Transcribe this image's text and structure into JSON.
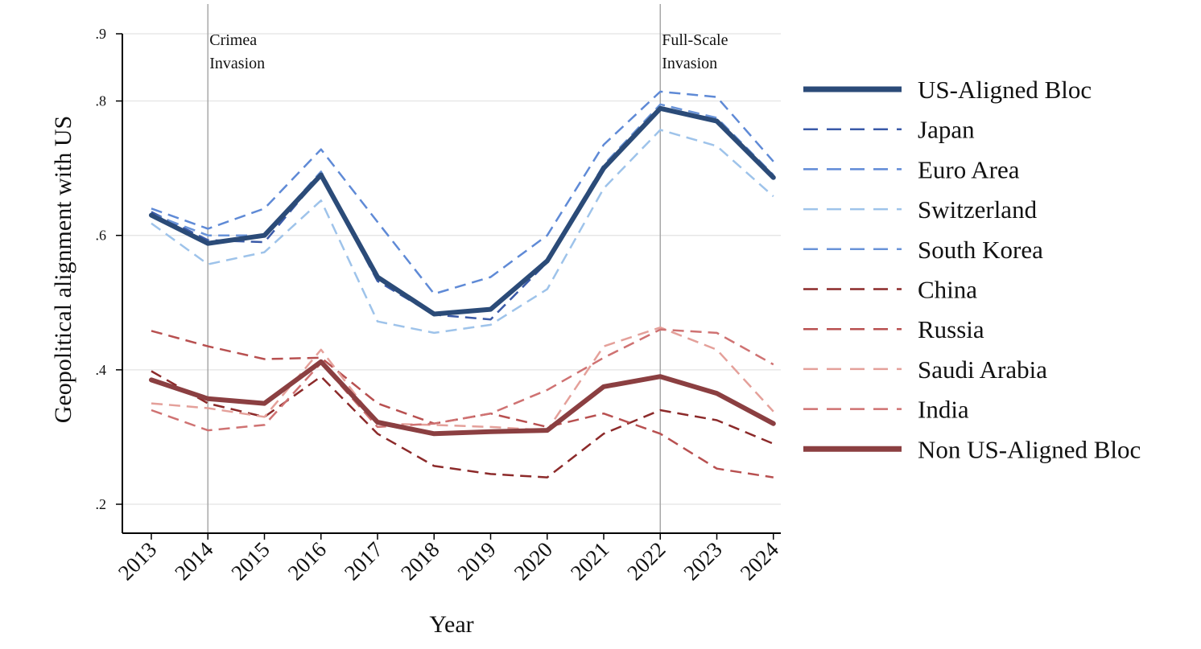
{
  "chart_data": {
    "type": "line",
    "title": "",
    "xlabel": "Year",
    "ylabel": "Geopolitical alignment with US",
    "x": [
      "2013",
      "2014",
      "2015",
      "2016",
      "2017",
      "2018",
      "2019",
      "2020",
      "2021",
      "2022",
      "2023",
      "2024"
    ],
    "ylim": [
      0.2,
      0.9
    ],
    "yticks": [
      0.2,
      0.4,
      0.6,
      0.8,
      0.9
    ],
    "ytick_labels": [
      ".2",
      ".4",
      ".6",
      ".8",
      ".9"
    ],
    "grid": true,
    "legend_position": "right",
    "annotations": [
      {
        "x": "2014",
        "lines": [
          "Crimea",
          "Invasion"
        ]
      },
      {
        "x": "2022",
        "lines": [
          "Full-Scale",
          "Invasion"
        ]
      }
    ],
    "series": [
      {
        "name": "Japan",
        "style": "dashed",
        "color": "#3a5aa8",
        "width": 2.5,
        "values": [
          0.635,
          0.593,
          0.59,
          0.69,
          0.532,
          0.482,
          0.475,
          0.56,
          0.7,
          0.79,
          0.77,
          0.685
        ]
      },
      {
        "name": "Euro Area",
        "style": "dashed",
        "color": "#5f8ad6",
        "width": 2.5,
        "values": [
          0.64,
          0.61,
          0.64,
          0.728,
          0.62,
          0.513,
          0.538,
          0.6,
          0.735,
          0.814,
          0.806,
          0.71
        ]
      },
      {
        "name": "Switzerland",
        "style": "dashed",
        "color": "#9ec3ea",
        "width": 2.5,
        "values": [
          0.618,
          0.557,
          0.575,
          0.652,
          0.472,
          0.455,
          0.467,
          0.52,
          0.67,
          0.757,
          0.733,
          0.658
        ]
      },
      {
        "name": "South Korea",
        "style": "dashed",
        "color": "#6993d8",
        "width": 2.5,
        "values": [
          0.632,
          0.6,
          0.6,
          0.695,
          0.538,
          0.483,
          0.49,
          0.565,
          0.705,
          0.795,
          0.775,
          0.69
        ]
      },
      {
        "name": "China",
        "style": "dashed",
        "color": "#8c2a2a",
        "width": 2.5,
        "values": [
          0.398,
          0.35,
          0.33,
          0.39,
          0.305,
          0.257,
          0.245,
          0.24,
          0.305,
          0.34,
          0.325,
          0.29
        ]
      },
      {
        "name": "Russia",
        "style": "dashed",
        "color": "#b85050",
        "width": 2.5,
        "values": [
          0.458,
          0.435,
          0.416,
          0.418,
          0.35,
          0.32,
          0.335,
          0.315,
          0.335,
          0.305,
          0.253,
          0.24
        ]
      },
      {
        "name": "Saudi Arabia",
        "style": "dashed",
        "color": "#e4a09a",
        "width": 2.5,
        "values": [
          0.35,
          0.343,
          0.33,
          0.43,
          0.32,
          0.318,
          0.315,
          0.31,
          0.435,
          0.463,
          0.43,
          0.338
        ]
      },
      {
        "name": "India",
        "style": "dashed",
        "color": "#cf7272",
        "width": 2.5,
        "values": [
          0.34,
          0.31,
          0.318,
          0.41,
          0.315,
          0.32,
          0.335,
          0.37,
          0.418,
          0.46,
          0.455,
          0.408
        ]
      },
      {
        "name": "US-Aligned Bloc",
        "style": "solid",
        "color": "#2b4b78",
        "width": 6,
        "values": [
          0.63,
          0.588,
          0.6,
          0.69,
          0.538,
          0.483,
          0.49,
          0.562,
          0.7,
          0.789,
          0.77,
          0.686
        ]
      },
      {
        "name": "Non US-Aligned Bloc",
        "style": "solid",
        "color": "#8b3f41",
        "width": 6,
        "values": [
          0.385,
          0.357,
          0.35,
          0.412,
          0.322,
          0.305,
          0.308,
          0.31,
          0.375,
          0.39,
          0.365,
          0.32
        ]
      }
    ],
    "legend_order": [
      "US-Aligned Bloc",
      "Japan",
      "Euro Area",
      "Switzerland",
      "South Korea",
      "China",
      "Russia",
      "Saudi Arabia",
      "India",
      "Non US-Aligned Bloc"
    ]
  }
}
